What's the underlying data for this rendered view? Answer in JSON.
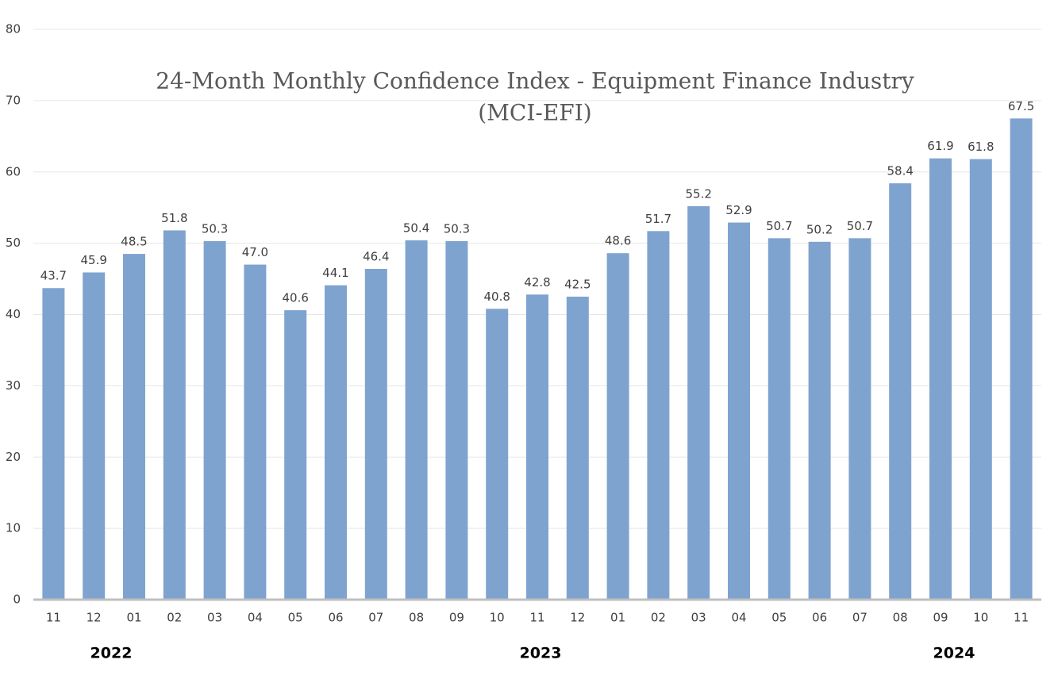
{
  "chart_data": {
    "type": "bar",
    "title": "24-Month Monthly Confidence Index - Equipment Finance Industry",
    "subtitle": "(MCI-EFI)",
    "categories": [
      "11",
      "12",
      "01",
      "02",
      "03",
      "04",
      "05",
      "06",
      "07",
      "08",
      "09",
      "10",
      "11",
      "12",
      "01",
      "02",
      "03",
      "04",
      "05",
      "06",
      "07",
      "08",
      "09",
      "10",
      "11"
    ],
    "values": [
      43.7,
      45.9,
      48.5,
      51.8,
      50.3,
      47.0,
      40.6,
      44.1,
      46.4,
      50.4,
      50.3,
      40.8,
      42.8,
      42.5,
      48.6,
      51.7,
      55.2,
      52.9,
      50.7,
      50.2,
      50.7,
      58.4,
      61.9,
      61.8,
      67.5
    ],
    "value_labels": [
      "43.7",
      "45.9",
      "48.5",
      "51.8",
      "50.3",
      "47.0",
      "40.6",
      "44.1",
      "46.4",
      "50.4",
      "50.3",
      "40.8",
      "42.8",
      "42.5",
      "48.6",
      "51.7",
      "55.2",
      "52.9",
      "50.7",
      "50.2",
      "50.7",
      "58.4",
      "61.9",
      "61.8",
      "67.5"
    ],
    "years": [
      "2022",
      "2023",
      "2024"
    ],
    "color": "#7fa3cf",
    "ylim": [
      0,
      80
    ],
    "yticks": [
      0,
      10,
      20,
      30,
      40,
      50,
      60,
      70,
      80
    ],
    "grid": true
  }
}
